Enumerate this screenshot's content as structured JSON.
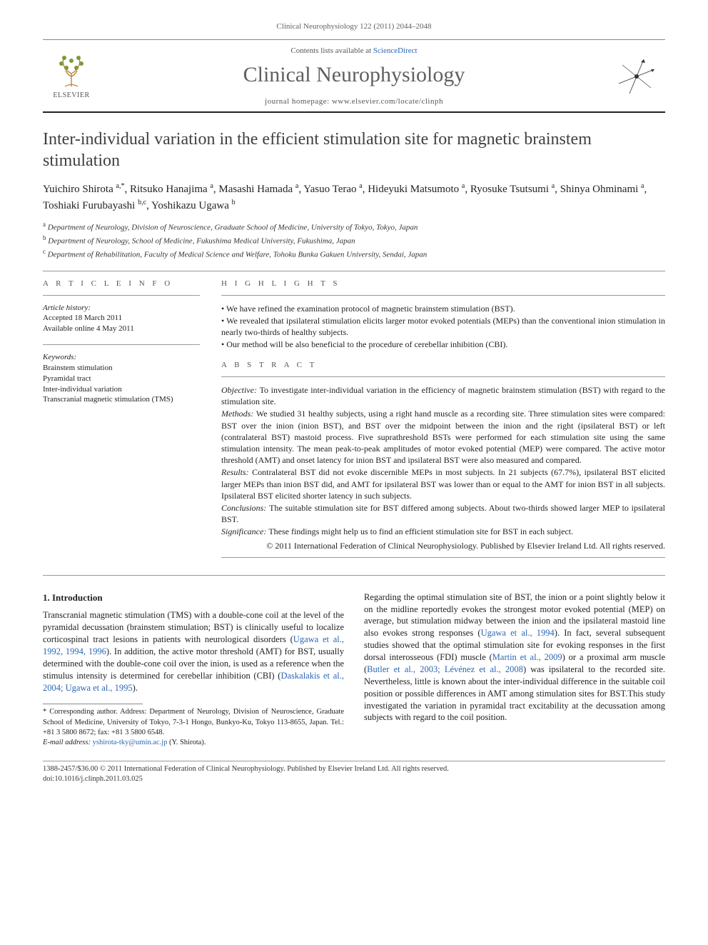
{
  "header": {
    "citation": "Clinical Neurophysiology 122 (2011) 2044–2048",
    "contents_prefix": "Contents lists available at ",
    "contents_link": "ScienceDirect",
    "journal_title": "Clinical Neurophysiology",
    "homepage_prefix": "journal homepage: ",
    "homepage_url": "www.elsevier.com/locate/clinph",
    "publisher_name": "ELSEVIER"
  },
  "article": {
    "title": "Inter-individual variation in the efficient stimulation site for magnetic brainstem stimulation",
    "authors_html": "Yuichiro Shirota <sup>a,*</sup>, Ritsuko Hanajima <sup>a</sup>, Masashi Hamada <sup>a</sup>, Yasuo Terao <sup>a</sup>, Hideyuki Matsumoto <sup>a</sup>, Ryosuke Tsutsumi <sup>a</sup>, Shinya Ohminami <sup>a</sup>, Toshiaki Furubayashi <sup>b,c</sup>, Yoshikazu Ugawa <sup>b</sup>",
    "affiliations": [
      {
        "sup": "a",
        "text": "Department of Neurology, Division of Neuroscience, Graduate School of Medicine, University of Tokyo, Tokyo, Japan"
      },
      {
        "sup": "b",
        "text": "Department of Neurology, School of Medicine, Fukushima Medical University, Fukushima, Japan"
      },
      {
        "sup": "c",
        "text": "Department of Rehabilitation, Faculty of Medical Science and Welfare, Tohoku Bunka Gakuen University, Sendai, Japan"
      }
    ]
  },
  "info": {
    "heading": "A R T I C L E   I N F O",
    "history_label": "Article history:",
    "accepted": "Accepted 18 March 2011",
    "online": "Available online 4 May 2011",
    "keywords_label": "Keywords:",
    "keywords": [
      "Brainstem stimulation",
      "Pyramidal tract",
      "Inter-individual variation",
      "Transcranial magnetic stimulation (TMS)"
    ]
  },
  "highlights": {
    "heading": "H I G H L I G H T S",
    "items": [
      "We have refined the examination protocol of magnetic brainstem stimulation (BST).",
      "We revealed that ipsilateral stimulation elicits larger motor evoked potentials (MEPs) than the conventional inion stimulation in nearly two-thirds of healthy subjects.",
      "Our method will be also beneficial to the procedure of cerebellar inhibition (CBI)."
    ]
  },
  "abstract": {
    "heading": "A B S T R A C T",
    "segments": [
      {
        "label": "Objective:",
        "text": "To investigate inter-individual variation in the efficiency of magnetic brainstem stimulation (BST) with regard to the stimulation site."
      },
      {
        "label": "Methods:",
        "text": "We studied 31 healthy subjects, using a right hand muscle as a recording site. Three stimulation sites were compared: BST over the inion (inion BST), and BST over the midpoint between the inion and the right (ipsilateral BST) or left (contralateral BST) mastoid process. Five suprathreshold BSTs were performed for each stimulation site using the same stimulation intensity. The mean peak-to-peak amplitudes of motor evoked potential (MEP) were compared. The active motor threshold (AMT) and onset latency for inion BST and ipsilateral BST were also measured and compared."
      },
      {
        "label": "Results:",
        "text": "Contralateral BST did not evoke discernible MEPs in most subjects. In 21 subjects (67.7%), ipsilateral BST elicited larger MEPs than inion BST did, and AMT for ipsilateral BST was lower than or equal to the AMT for inion BST in all subjects. Ipsilateral BST elicited shorter latency in such subjects."
      },
      {
        "label": "Conclusions:",
        "text": "The suitable stimulation site for BST differed among subjects. About two-thirds showed larger MEP to ipsilateral BST."
      },
      {
        "label": "Significance:",
        "text": "These findings might help us to find an efficient stimulation site for BST in each subject."
      }
    ],
    "copyright": "© 2011 International Federation of Clinical Neurophysiology. Published by Elsevier Ireland Ltd. All rights reserved."
  },
  "body": {
    "section_heading": "1. Introduction",
    "col1_p1_pre": "Transcranial magnetic stimulation (TMS) with a double-cone coil at the level of the pyramidal decussation (brainstem stimulation; BST) is clinically useful to localize corticospinal tract lesions in patients with neurological disorders (",
    "col1_p1_ref1": "Ugawa et al., 1992, 1994, 1996",
    "col1_p1_mid": "). In addition, the active motor threshold (AMT) for BST, usually determined with the double-cone coil over the inion, is used as a reference when the stimulus intensity is determined for cerebellar inhibition (CBI) (",
    "col1_p1_ref2": "Daskalakis et al., 2004; Ugawa et al., 1995",
    "col1_p1_post": ").",
    "col2_p1_pre": "Regarding the optimal stimulation site of BST, the inion or a point slightly below it on the midline reportedly evokes the strongest motor evoked potential (MEP) on average, but stimulation midway between the inion and the ipsilateral mastoid line also evokes strong responses (",
    "col2_p1_ref1": "Ugawa et al., 1994",
    "col2_p1_mid1": "). In fact, several subsequent studies showed that the optimal stimulation site for evoking responses in the first dorsal interosseous (FDI) muscle (",
    "col2_p1_ref2": "Martin et al., 2009",
    "col2_p1_mid2": ") or a proximal arm muscle (",
    "col2_p1_ref3": "Butler et al., 2003; Lévénez et al., 2008",
    "col2_p1_post": ") was ipsilateral to the recorded site. Nevertheless, little is known about the inter-individual difference in the suitable coil position or possible differences in AMT among stimulation sites for BST.This study investigated the variation in pyramidal tract excitability at the decussation among subjects with regard to the coil position."
  },
  "footnote": {
    "corr": "* Corresponding author. Address: Department of Neurology, Division of Neuroscience, Graduate School of Medicine, University of Tokyo, 7-3-1 Hongo, Bunkyo-Ku, Tokyo 113-8655, Japan. Tel.: +81 3 5800 8672; fax: +81 3 5800 6548.",
    "email_label": "E-mail address:",
    "email": "yshirota-tky@umin.ac.jp",
    "email_who": "(Y. Shirota)."
  },
  "footer": {
    "line1": "1388-2457/$36.00 © 2011 International Federation of Clinical Neurophysiology. Published by Elsevier Ireland Ltd. All rights reserved.",
    "line2": "doi:10.1016/j.clinph.2011.03.025"
  },
  "colors": {
    "link": "#2a66b5",
    "rule": "#999999",
    "heading_gray": "#555555",
    "title_gray": "#404040",
    "journal_gray": "#606060"
  }
}
